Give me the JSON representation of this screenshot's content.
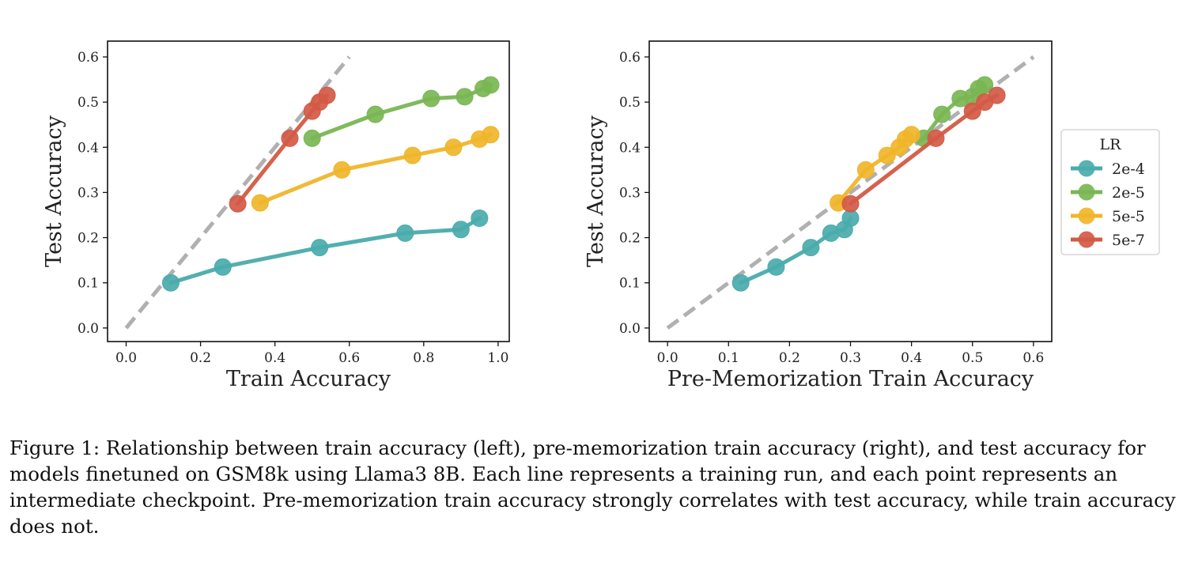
{
  "chart_data": [
    {
      "type": "line",
      "xlabel": "Train Accuracy",
      "ylabel": "Test Accuracy",
      "xlim": [
        -0.05,
        1.03
      ],
      "ylim": [
        -0.03,
        0.635
      ],
      "xticks": [
        0.0,
        0.2,
        0.4,
        0.6,
        0.8,
        1.0
      ],
      "yticks": [
        0.0,
        0.1,
        0.2,
        0.3,
        0.4,
        0.5,
        0.6
      ],
      "reference_line": {
        "style": "dashed",
        "color": "#b0b0b0",
        "from": [
          0.0,
          0.0
        ],
        "to": [
          0.6,
          0.6
        ]
      },
      "series": [
        {
          "name": "2e-4",
          "color": "#4aabab",
          "points": [
            [
              0.12,
              0.1
            ],
            [
              0.26,
              0.135
            ],
            [
              0.52,
              0.178
            ],
            [
              0.75,
              0.21
            ],
            [
              0.9,
              0.218
            ],
            [
              0.95,
              0.243
            ]
          ]
        },
        {
          "name": "2e-5",
          "color": "#7ab654",
          "points": [
            [
              0.5,
              0.42
            ],
            [
              0.67,
              0.473
            ],
            [
              0.82,
              0.508
            ],
            [
              0.91,
              0.512
            ],
            [
              0.96,
              0.53
            ],
            [
              0.98,
              0.538
            ]
          ]
        },
        {
          "name": "5e-5",
          "color": "#f0b52a",
          "points": [
            [
              0.36,
              0.277
            ],
            [
              0.58,
              0.35
            ],
            [
              0.77,
              0.382
            ],
            [
              0.88,
              0.4
            ],
            [
              0.95,
              0.418
            ],
            [
              0.98,
              0.428
            ]
          ]
        },
        {
          "name": "5e-7",
          "color": "#d35a45",
          "points": [
            [
              0.3,
              0.275
            ],
            [
              0.44,
              0.42
            ],
            [
              0.5,
              0.48
            ],
            [
              0.52,
              0.5
            ],
            [
              0.54,
              0.515
            ]
          ]
        }
      ]
    },
    {
      "type": "line",
      "xlabel": "Pre-Memorization Train Accuracy",
      "ylabel": "Test Accuracy",
      "xlim": [
        -0.03,
        0.63
      ],
      "ylim": [
        -0.03,
        0.635
      ],
      "xticks": [
        0.0,
        0.1,
        0.2,
        0.3,
        0.4,
        0.5,
        0.6
      ],
      "yticks": [
        0.0,
        0.1,
        0.2,
        0.3,
        0.4,
        0.5,
        0.6
      ],
      "reference_line": {
        "style": "dashed",
        "color": "#b0b0b0",
        "from": [
          0.0,
          0.0
        ],
        "to": [
          0.6,
          0.6
        ]
      },
      "series": [
        {
          "name": "2e-4",
          "color": "#4aabab",
          "points": [
            [
              0.12,
              0.1
            ],
            [
              0.178,
              0.135
            ],
            [
              0.235,
              0.178
            ],
            [
              0.268,
              0.21
            ],
            [
              0.29,
              0.218
            ],
            [
              0.3,
              0.243
            ]
          ]
        },
        {
          "name": "2e-5",
          "color": "#7ab654",
          "points": [
            [
              0.42,
              0.42
            ],
            [
              0.45,
              0.473
            ],
            [
              0.48,
              0.508
            ],
            [
              0.5,
              0.512
            ],
            [
              0.51,
              0.53
            ],
            [
              0.52,
              0.538
            ]
          ]
        },
        {
          "name": "5e-5",
          "color": "#f0b52a",
          "points": [
            [
              0.28,
              0.277
            ],
            [
              0.325,
              0.35
            ],
            [
              0.36,
              0.382
            ],
            [
              0.38,
              0.4
            ],
            [
              0.39,
              0.418
            ],
            [
              0.4,
              0.428
            ]
          ]
        },
        {
          "name": "5e-7",
          "color": "#d35a45",
          "points": [
            [
              0.3,
              0.275
            ],
            [
              0.44,
              0.42
            ],
            [
              0.5,
              0.48
            ],
            [
              0.52,
              0.5
            ],
            [
              0.54,
              0.515
            ]
          ]
        }
      ],
      "legend": {
        "title": "LR",
        "placement": "outside-right",
        "entries": [
          "2e-4",
          "2e-5",
          "5e-5",
          "5e-7"
        ]
      }
    }
  ],
  "caption": "Figure 1: Relationship between train accuracy (left), pre-memorization train accuracy (right), and test accuracy for models finetuned on GSM8k using Llama3 8B. Each line represents a training run, and each point represents an intermediate checkpoint. Pre-memorization train accuracy strongly correlates with test accuracy, while train accuracy does not."
}
